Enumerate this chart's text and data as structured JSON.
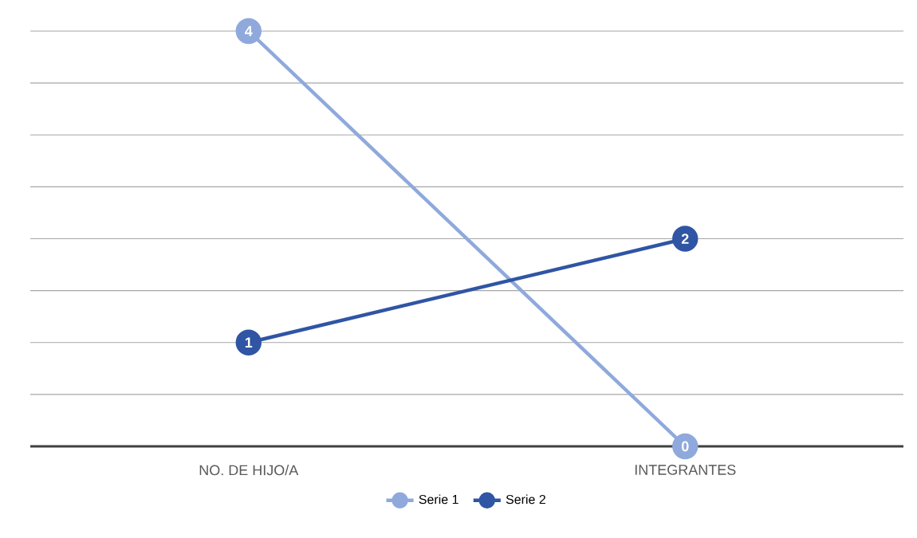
{
  "chart_data": {
    "type": "line",
    "categories": [
      "NO. DE HIJO/A",
      "INTEGRANTES"
    ],
    "series": [
      {
        "name": "Serie 1",
        "color": "#8fa9dc",
        "values": [
          4,
          0
        ]
      },
      {
        "name": "Serie 2",
        "color": "#2f55a4",
        "values": [
          1,
          2
        ]
      }
    ],
    "tick_labels": "x",
    "grid": "y",
    "legend": "bottom",
    "marker": "circle",
    "line_style": "solid",
    "data_labels": true
  }
}
